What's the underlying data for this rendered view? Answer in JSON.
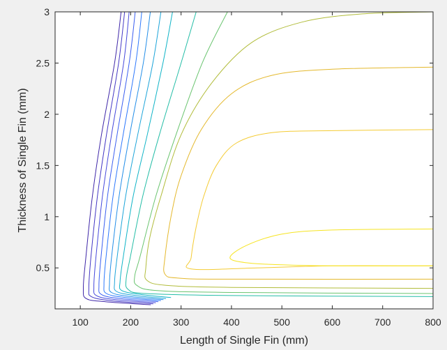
{
  "chart_data": {
    "type": "contour",
    "title": "",
    "xlabel": "Length of Single Fin (mm)",
    "ylabel": "Thickness of Single Fin (mm)",
    "xlim": [
      50,
      800
    ],
    "ylim": [
      0.1,
      3
    ],
    "xticks": [
      100,
      200,
      300,
      400,
      500,
      600,
      700,
      800
    ],
    "yticks": [
      0.5,
      1,
      1.5,
      2,
      2.5,
      3
    ],
    "xtick_labels": [
      "100",
      "200",
      "300",
      "400",
      "500",
      "600",
      "700",
      "800"
    ],
    "ytick_labels": [
      "0.5",
      "1",
      "1.5",
      "2",
      "2.5",
      "3"
    ],
    "grid": false,
    "colormap": "parula",
    "contours": [
      {
        "color": "#3e26a8",
        "points": [
          [
            240,
            0.14
          ],
          [
            150,
            0.17
          ],
          [
            112,
            0.2
          ],
          [
            106,
            0.3
          ],
          [
            111,
            0.6
          ],
          [
            124,
            1.2
          ],
          [
            142,
            1.8
          ],
          [
            168,
            2.5
          ],
          [
            181,
            3.0
          ]
        ]
      },
      {
        "color": "#4236c4",
        "points": [
          [
            245,
            0.15
          ],
          [
            160,
            0.18
          ],
          [
            122,
            0.22
          ],
          [
            117,
            0.3
          ],
          [
            121,
            0.6
          ],
          [
            134,
            1.2
          ],
          [
            152,
            1.8
          ],
          [
            176,
            2.5
          ],
          [
            188,
            3.0
          ]
        ]
      },
      {
        "color": "#4548db",
        "points": [
          [
            250,
            0.16
          ],
          [
            170,
            0.19
          ],
          [
            132,
            0.23
          ],
          [
            127,
            0.32
          ],
          [
            131,
            0.6
          ],
          [
            144,
            1.2
          ],
          [
            162,
            1.8
          ],
          [
            186,
            2.5
          ],
          [
            197,
            3.0
          ]
        ]
      },
      {
        "color": "#3a5ef0",
        "points": [
          [
            255,
            0.17
          ],
          [
            180,
            0.2
          ],
          [
            142,
            0.24
          ],
          [
            137,
            0.33
          ],
          [
            141,
            0.6
          ],
          [
            154,
            1.2
          ],
          [
            173,
            1.8
          ],
          [
            197,
            2.5
          ],
          [
            209,
            3.0
          ]
        ]
      },
      {
        "color": "#2c77fc",
        "points": [
          [
            260,
            0.18
          ],
          [
            190,
            0.21
          ],
          [
            152,
            0.25
          ],
          [
            147,
            0.34
          ],
          [
            151,
            0.6
          ],
          [
            165,
            1.2
          ],
          [
            185,
            1.8
          ],
          [
            210,
            2.5
          ],
          [
            222,
            3.0
          ]
        ]
      },
      {
        "color": "#238ee8",
        "points": [
          [
            265,
            0.19
          ],
          [
            200,
            0.22
          ],
          [
            162,
            0.26
          ],
          [
            158,
            0.35
          ],
          [
            162,
            0.6
          ],
          [
            177,
            1.2
          ],
          [
            198,
            1.8
          ],
          [
            225,
            2.5
          ],
          [
            239,
            3.0
          ]
        ]
      },
      {
        "color": "#1ba4d9",
        "points": [
          [
            270,
            0.2
          ],
          [
            210,
            0.23
          ],
          [
            172,
            0.27
          ],
          [
            168,
            0.36
          ],
          [
            173,
            0.6
          ],
          [
            190,
            1.2
          ],
          [
            214,
            1.8
          ],
          [
            244,
            2.5
          ],
          [
            260,
            3.0
          ]
        ]
      },
      {
        "color": "#10b4c7",
        "points": [
          [
            280,
            0.21
          ],
          [
            220,
            0.24
          ],
          [
            182,
            0.28
          ],
          [
            179,
            0.37
          ],
          [
            185,
            0.6
          ],
          [
            205,
            1.2
          ],
          [
            233,
            1.8
          ],
          [
            264,
            2.5
          ],
          [
            283,
            3.0
          ]
        ]
      },
      {
        "color": "#24bda6",
        "points": [
          [
            800,
            0.22
          ],
          [
            400,
            0.23
          ],
          [
            230,
            0.25
          ],
          [
            195,
            0.29
          ],
          [
            191,
            0.39
          ],
          [
            199,
            0.6
          ],
          [
            224,
            1.2
          ],
          [
            257,
            1.8
          ],
          [
            300,
            2.5
          ],
          [
            330,
            3.0
          ]
        ]
      },
      {
        "color": "#6ac46f",
        "points": [
          [
            800,
            0.25
          ],
          [
            400,
            0.26
          ],
          [
            250,
            0.28
          ],
          [
            212,
            0.33
          ],
          [
            208,
            0.42
          ],
          [
            218,
            0.6
          ],
          [
            250,
            1.2
          ],
          [
            290,
            1.8
          ],
          [
            342,
            2.5
          ],
          [
            392,
            3.0
          ]
        ]
      },
      {
        "color": "#b1bc3a",
        "points": [
          [
            800,
            0.3
          ],
          [
            400,
            0.31
          ],
          [
            270,
            0.33
          ],
          [
            232,
            0.38
          ],
          [
            230,
            0.5
          ],
          [
            238,
            0.8
          ],
          [
            260,
            1.2
          ],
          [
            300,
            1.8
          ],
          [
            360,
            2.3
          ],
          [
            440,
            2.7
          ],
          [
            540,
            2.9
          ],
          [
            660,
            2.98
          ],
          [
            800,
            3.0
          ]
        ]
      },
      {
        "color": "#e4b82c",
        "points": [
          [
            800,
            0.39
          ],
          [
            400,
            0.39
          ],
          [
            295,
            0.4
          ],
          [
            268,
            0.44
          ],
          [
            268,
            0.6
          ],
          [
            280,
            1.0
          ],
          [
            300,
            1.4
          ],
          [
            340,
            1.85
          ],
          [
            400,
            2.2
          ],
          [
            480,
            2.38
          ],
          [
            600,
            2.44
          ],
          [
            800,
            2.46
          ]
        ]
      },
      {
        "color": "#f4cb33",
        "points": [
          [
            800,
            0.52
          ],
          [
            600,
            0.52
          ],
          [
            450,
            0.5
          ],
          [
            320,
            0.49
          ],
          [
            320,
            0.6
          ],
          [
            330,
            0.9
          ],
          [
            345,
            1.2
          ],
          [
            370,
            1.5
          ],
          [
            410,
            1.72
          ],
          [
            480,
            1.82
          ],
          [
            600,
            1.84
          ],
          [
            800,
            1.85
          ]
        ]
      },
      {
        "color": "#f6e421",
        "points": [
          [
            800,
            0.88
          ],
          [
            600,
            0.87
          ],
          [
            500,
            0.83
          ],
          [
            430,
            0.72
          ],
          [
            397,
            0.6
          ],
          [
            430,
            0.55
          ],
          [
            500,
            0.53
          ],
          [
            600,
            0.52
          ],
          [
            800,
            0.52
          ]
        ]
      }
    ]
  }
}
